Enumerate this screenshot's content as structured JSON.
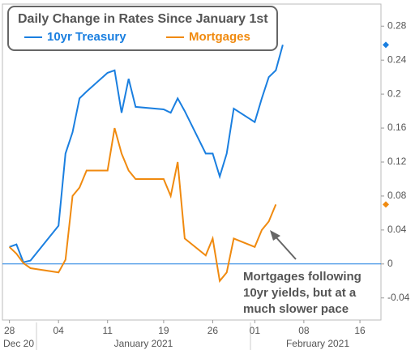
{
  "chart_data": {
    "type": "line",
    "title": "Daily Change in Rates Since January 1st",
    "annotation": [
      "Mortgages following",
      "10yr yields, but at a",
      "much slower pace"
    ],
    "x": [
      "2020-12-28",
      "2020-12-29",
      "2020-12-30",
      "2020-12-31",
      "2021-01-04",
      "2021-01-05",
      "2021-01-06",
      "2021-01-07",
      "2021-01-08",
      "2021-01-11",
      "2021-01-12",
      "2021-01-13",
      "2021-01-14",
      "2021-01-15",
      "2021-01-19",
      "2021-01-20",
      "2021-01-21",
      "2021-01-22",
      "2021-01-25",
      "2021-01-26",
      "2021-01-27",
      "2021-01-28",
      "2021-01-29",
      "2021-02-01",
      "2021-02-02",
      "2021-02-03",
      "2021-02-04",
      "2021-02-05"
    ],
    "series": [
      {
        "name": "10yr Treasury",
        "color": "#1a7fe0",
        "values": [
          0.02,
          0.023,
          0.002,
          0.004,
          0.045,
          0.13,
          0.155,
          0.195,
          0.203,
          0.225,
          0.228,
          0.178,
          0.218,
          0.185,
          0.182,
          0.178,
          0.195,
          0.18,
          0.13,
          0.13,
          0.103,
          0.13,
          0.183,
          0.167,
          0.195,
          0.22,
          0.228,
          0.258
        ]
      },
      {
        "name": "Mortgages",
        "color": "#f08a0f",
        "values": [
          0.02,
          0.012,
          0.001,
          -0.005,
          -0.01,
          0.005,
          0.08,
          0.09,
          0.11,
          0.11,
          0.16,
          0.13,
          0.11,
          0.1,
          0.1,
          0.08,
          0.12,
          0.03,
          0.01,
          0.03,
          -0.02,
          -0.01,
          0.03,
          0.02,
          0.04,
          0.05,
          0.07,
          null
        ]
      }
    ],
    "xlim": [
      "2020-12-27",
      "2021-02-19"
    ],
    "xticks": [
      {
        "value": "2020-12-28",
        "label": "28"
      },
      {
        "value": "2021-01-04",
        "label": "04"
      },
      {
        "value": "2021-01-11",
        "label": "11"
      },
      {
        "value": "2021-01-19",
        "label": "19"
      },
      {
        "value": "2021-01-26",
        "label": "26"
      },
      {
        "value": "2021-02-01",
        "label": "01"
      },
      {
        "value": "2021-02-08",
        "label": "08"
      },
      {
        "value": "2021-02-16",
        "label": "16"
      }
    ],
    "x_groups": [
      "Dec 20",
      "January 2021",
      "February 2021"
    ],
    "ylim": [
      -0.066,
      0.306
    ],
    "yticks": [
      -0.04,
      {
        "value": 0,
        "label": "0"
      },
      0.04,
      0.08,
      0.12,
      0.16,
      0.2,
      0.24,
      0.28
    ],
    "zero_line_color": "#1a7fe0"
  }
}
